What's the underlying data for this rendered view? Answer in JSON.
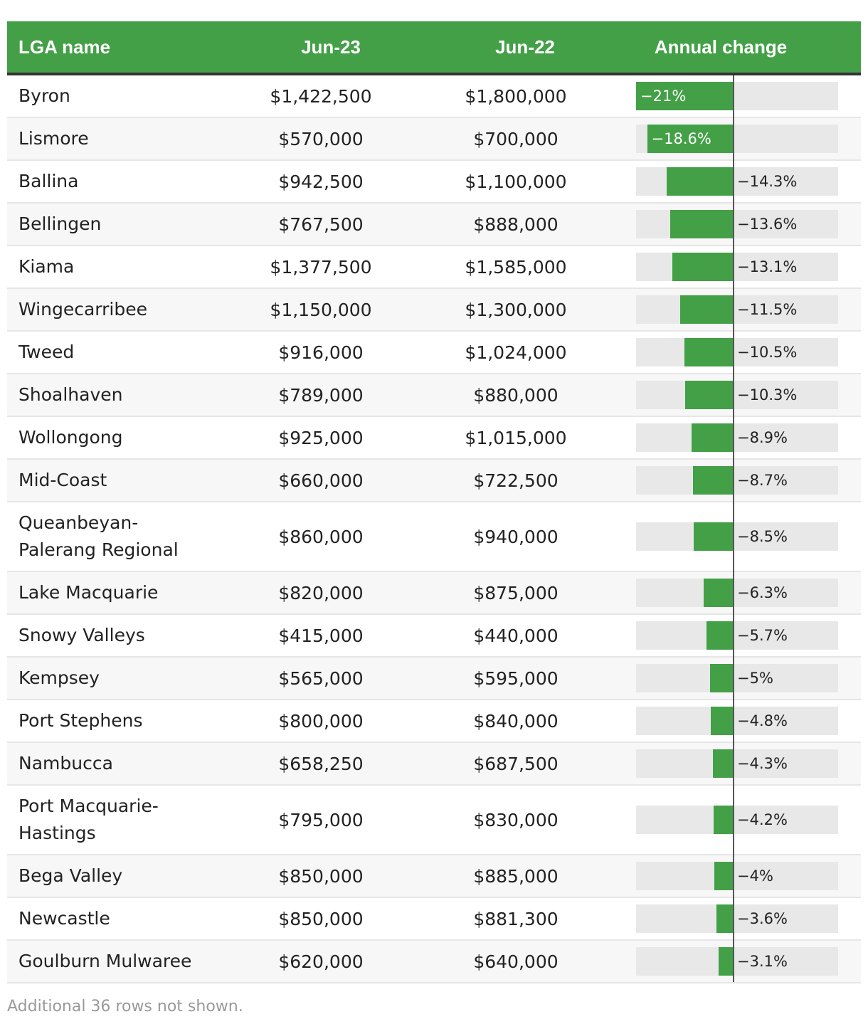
{
  "header": {
    "col_name": "LGA name",
    "col_jun23": "Jun-23",
    "col_jun22": "Jun-22",
    "col_change": "Annual change"
  },
  "colors": {
    "accent": "#43a047",
    "bar_track": "#e8e8e8",
    "axis": "#555555"
  },
  "rows": [
    {
      "name": "Byron",
      "jun23": "$1,422,500",
      "jun22": "$1,800,000",
      "change": -21,
      "change_label": "−21%"
    },
    {
      "name": "Lismore",
      "jun23": "$570,000",
      "jun22": "$700,000",
      "change": -18.6,
      "change_label": "−18.6%"
    },
    {
      "name": "Ballina",
      "jun23": "$942,500",
      "jun22": "$1,100,000",
      "change": -14.3,
      "change_label": "−14.3%"
    },
    {
      "name": "Bellingen",
      "jun23": "$767,500",
      "jun22": "$888,000",
      "change": -13.6,
      "change_label": "−13.6%"
    },
    {
      "name": "Kiama",
      "jun23": "$1,377,500",
      "jun22": "$1,585,000",
      "change": -13.1,
      "change_label": "−13.1%"
    },
    {
      "name": "Wingecarribee",
      "jun23": "$1,150,000",
      "jun22": "$1,300,000",
      "change": -11.5,
      "change_label": "−11.5%"
    },
    {
      "name": "Tweed",
      "jun23": "$916,000",
      "jun22": "$1,024,000",
      "change": -10.5,
      "change_label": "−10.5%"
    },
    {
      "name": "Shoalhaven",
      "jun23": "$789,000",
      "jun22": "$880,000",
      "change": -10.3,
      "change_label": "−10.3%"
    },
    {
      "name": "Wollongong",
      "jun23": "$925,000",
      "jun22": "$1,015,000",
      "change": -8.9,
      "change_label": "−8.9%"
    },
    {
      "name": "Mid-Coast",
      "jun23": "$660,000",
      "jun22": "$722,500",
      "change": -8.7,
      "change_label": "−8.7%"
    },
    {
      "name": "Queanbeyan-Palerang Regional",
      "jun23": "$860,000",
      "jun22": "$940,000",
      "change": -8.5,
      "change_label": "−8.5%"
    },
    {
      "name": "Lake Macquarie",
      "jun23": "$820,000",
      "jun22": "$875,000",
      "change": -6.3,
      "change_label": "−6.3%"
    },
    {
      "name": "Snowy Valleys",
      "jun23": "$415,000",
      "jun22": "$440,000",
      "change": -5.7,
      "change_label": "−5.7%"
    },
    {
      "name": "Kempsey",
      "jun23": "$565,000",
      "jun22": "$595,000",
      "change": -5,
      "change_label": "−5%"
    },
    {
      "name": "Port Stephens",
      "jun23": "$800,000",
      "jun22": "$840,000",
      "change": -4.8,
      "change_label": "−4.8%"
    },
    {
      "name": "Nambucca",
      "jun23": "$658,250",
      "jun22": "$687,500",
      "change": -4.3,
      "change_label": "−4.3%"
    },
    {
      "name": "Port Macquarie-Hastings",
      "jun23": "$795,000",
      "jun22": "$830,000",
      "change": -4.2,
      "change_label": "−4.2%"
    },
    {
      "name": "Bega Valley",
      "jun23": "$850,000",
      "jun22": "$885,000",
      "change": -4,
      "change_label": "−4%"
    },
    {
      "name": "Newcastle",
      "jun23": "$850,000",
      "jun22": "$881,300",
      "change": -3.6,
      "change_label": "−3.6%"
    },
    {
      "name": "Goulburn Mulwaree",
      "jun23": "$620,000",
      "jun22": "$640,000",
      "change": -3.1,
      "change_label": "−3.1%"
    }
  ],
  "footnote": "Additional 36 rows not shown.",
  "chart_data": {
    "type": "table",
    "columns": [
      "LGA name",
      "Jun-23",
      "Jun-22",
      "Annual change"
    ],
    "categories": [
      "Byron",
      "Lismore",
      "Ballina",
      "Bellingen",
      "Kiama",
      "Wingecarribee",
      "Tweed",
      "Shoalhaven",
      "Wollongong",
      "Mid-Coast",
      "Queanbeyan-Palerang Regional",
      "Lake Macquarie",
      "Snowy Valleys",
      "Kempsey",
      "Port Stephens",
      "Nambucca",
      "Port Macquarie-Hastings",
      "Bega Valley",
      "Newcastle",
      "Goulburn Mulwaree"
    ],
    "series": [
      {
        "name": "Jun-23",
        "values": [
          1422500,
          570000,
          942500,
          767500,
          1377500,
          1150000,
          916000,
          789000,
          925000,
          660000,
          860000,
          820000,
          415000,
          565000,
          800000,
          658250,
          795000,
          850000,
          850000,
          620000
        ]
      },
      {
        "name": "Jun-22",
        "values": [
          1800000,
          700000,
          1100000,
          888000,
          1585000,
          1300000,
          1024000,
          880000,
          1015000,
          722500,
          940000,
          875000,
          440000,
          595000,
          840000,
          687500,
          830000,
          885000,
          881300,
          640000
        ]
      },
      {
        "name": "Annual change",
        "values": [
          -21,
          -18.6,
          -14.3,
          -13.6,
          -13.1,
          -11.5,
          -10.5,
          -10.3,
          -8.9,
          -8.7,
          -8.5,
          -6.3,
          -5.7,
          -5,
          -4.8,
          -4.3,
          -4.2,
          -4,
          -3.6,
          -3.1
        ]
      }
    ]
  }
}
